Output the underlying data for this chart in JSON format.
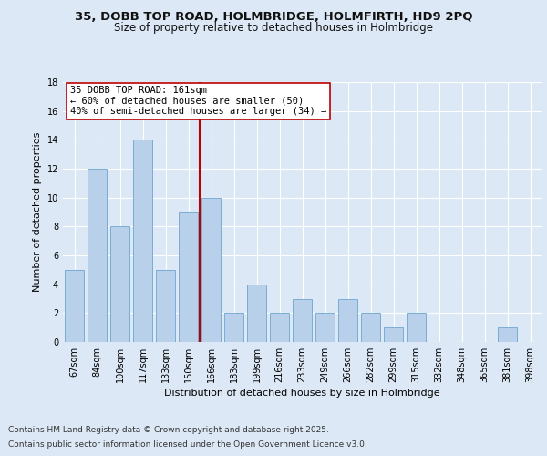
{
  "title": "35, DOBB TOP ROAD, HOLMBRIDGE, HOLMFIRTH, HD9 2PQ",
  "subtitle": "Size of property relative to detached houses in Holmbridge",
  "xlabel": "Distribution of detached houses by size in Holmbridge",
  "ylabel": "Number of detached properties",
  "categories": [
    "67sqm",
    "84sqm",
    "100sqm",
    "117sqm",
    "133sqm",
    "150sqm",
    "166sqm",
    "183sqm",
    "199sqm",
    "216sqm",
    "233sqm",
    "249sqm",
    "266sqm",
    "282sqm",
    "299sqm",
    "315sqm",
    "332sqm",
    "348sqm",
    "365sqm",
    "381sqm",
    "398sqm"
  ],
  "values": [
    5,
    12,
    8,
    14,
    5,
    9,
    10,
    2,
    4,
    2,
    3,
    2,
    3,
    2,
    1,
    2,
    0,
    0,
    0,
    1,
    0
  ],
  "bar_color": "#b8d0ea",
  "bar_edge_color": "#7aadd4",
  "vline_x": 5.5,
  "vline_color": "#bb0000",
  "annotation_title": "35 DOBB TOP ROAD: 161sqm",
  "annotation_line1": "← 60% of detached houses are smaller (50)",
  "annotation_line2": "40% of semi-detached houses are larger (34) →",
  "footer_line1": "Contains HM Land Registry data © Crown copyright and database right 2025.",
  "footer_line2": "Contains public sector information licensed under the Open Government Licence v3.0.",
  "ylim": [
    0,
    18
  ],
  "yticks": [
    0,
    2,
    4,
    6,
    8,
    10,
    12,
    14,
    16,
    18
  ],
  "bg_color": "#dce8f5",
  "plot_bg_color": "#dce8f5",
  "grid_color": "#ffffff",
  "title_fontsize": 9.5,
  "subtitle_fontsize": 8.5,
  "axis_label_fontsize": 8,
  "tick_fontsize": 7,
  "footer_fontsize": 6.5,
  "annotation_fontsize": 7.5
}
